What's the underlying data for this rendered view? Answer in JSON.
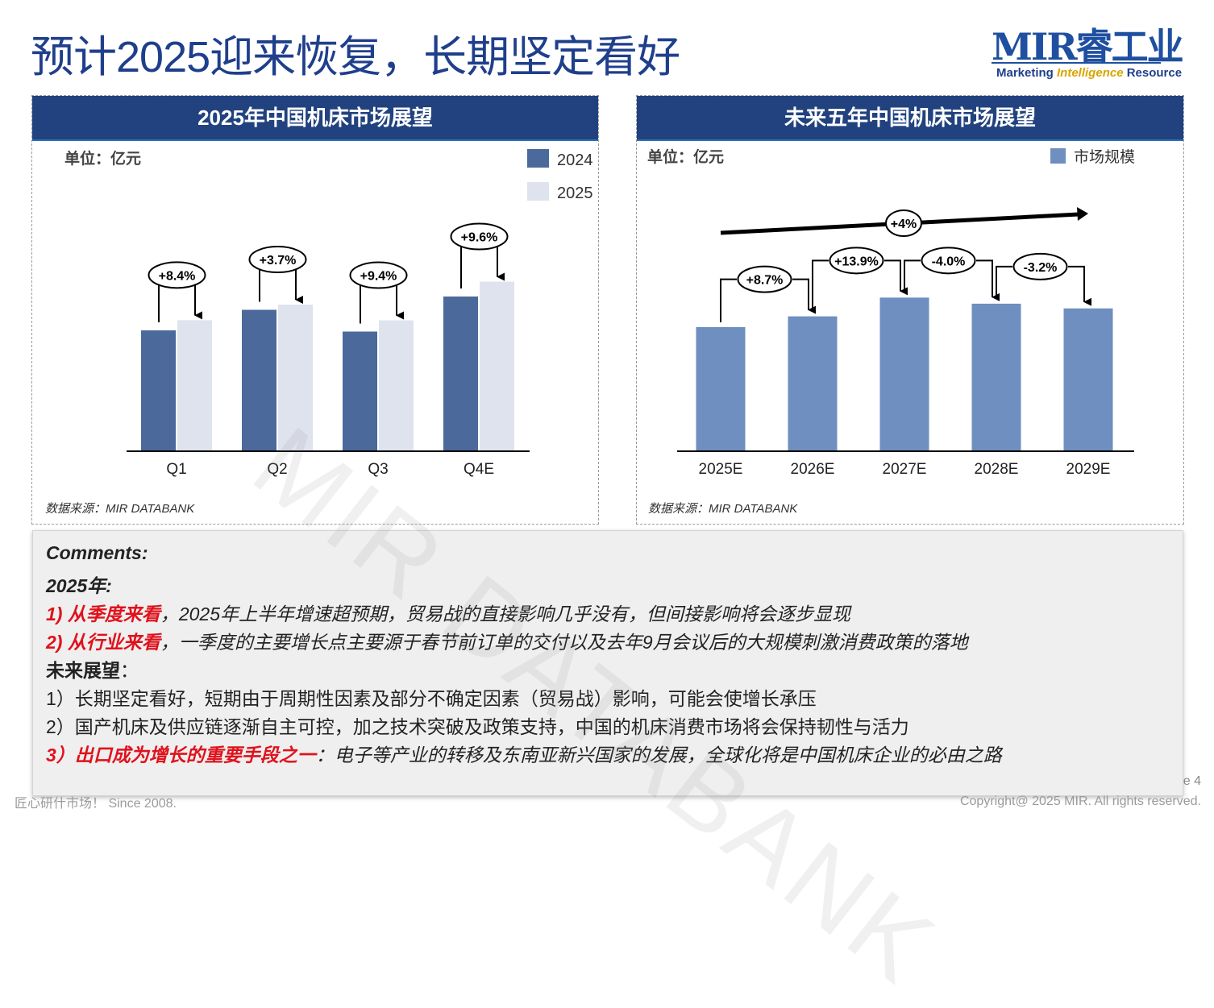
{
  "title": "预计2025迎来恢复，长期坚定看好",
  "logo": {
    "main": "MIR睿工业",
    "sub_a": "Marketing ",
    "sub_b": "Intelligence",
    "sub_c": " Resource"
  },
  "watermark": "MIR DATABANK",
  "chart_data": [
    {
      "type": "bar",
      "title": "2025年中国机床市场展望",
      "unit_label": "单位：亿元",
      "categories": [
        "Q1",
        "Q2",
        "Q3",
        "Q4E"
      ],
      "series": [
        {
          "name": "2024",
          "values": [
            100,
            117,
            99,
            128
          ],
          "color": "#4b6a9b"
        },
        {
          "name": "2025",
          "values": [
            108.4,
            121.3,
            108.3,
            140.3
          ],
          "color": "#dfe3ee"
        }
      ],
      "growth_labels": [
        "+8.4%",
        "+3.7%",
        "+9.4%",
        "+9.6%"
      ],
      "ylim": [
        0,
        175
      ],
      "legend": "top-right",
      "source": "数据来源：MIR DATABANK"
    },
    {
      "type": "bar",
      "title": "未来五年中国机床市场展望",
      "unit_label": "单位：亿元",
      "categories": [
        "2025E",
        "2026E",
        "2027E",
        "2028E",
        "2029E"
      ],
      "series": [
        {
          "name": "市场规模",
          "values": [
            100,
            108.7,
            123.8,
            118.9,
            115.1
          ],
          "color": "#6e8fbf"
        }
      ],
      "growth_labels": [
        "+8.7%",
        "+13.9%",
        "-4.0%",
        "-3.2%"
      ],
      "cagr_label": "+4%",
      "ylim": [
        0,
        175
      ],
      "legend": "top-right",
      "source": "数据来源：MIR DATABANK"
    }
  ],
  "comments": {
    "heading": "Comments:",
    "year_heading": "2025年:",
    "l1_red": "1) 从季度来看",
    "l1_rest": "，2025年上半年增速超预期，贸易战的直接影响几乎没有，但间接影响将会逐步显现",
    "l2_red": "2) 从行业来看",
    "l2_rest": "，一季度的主要增长点主要源于春节前订单的交付以及去年9月会议后的大规模刺激消费政策的落地",
    "outlook_heading": "未来展望",
    "outlook_colon": "：",
    "o1": "1）长期坚定看好，短期由于周期性因素及部分不确定因素（贸易战）影响，可能会使增长承压",
    "o2": "2）国产机床及供应链逐渐自主可控，加之技术突破及政策支持，中国的机床消费市场将会保持韧性与活力",
    "o3_red": "3）出口成为增长的重要手段之一",
    "o3_rest": "：电子等产业的转移及东南亚新兴国家的发展，全球化将是中国机床企业的必由之路"
  },
  "footer": {
    "left": "匠心研什市场！ Since 2008.",
    "right": "Copyright@ 2025 MIR. All rights reserved.",
    "page": "e 4"
  }
}
